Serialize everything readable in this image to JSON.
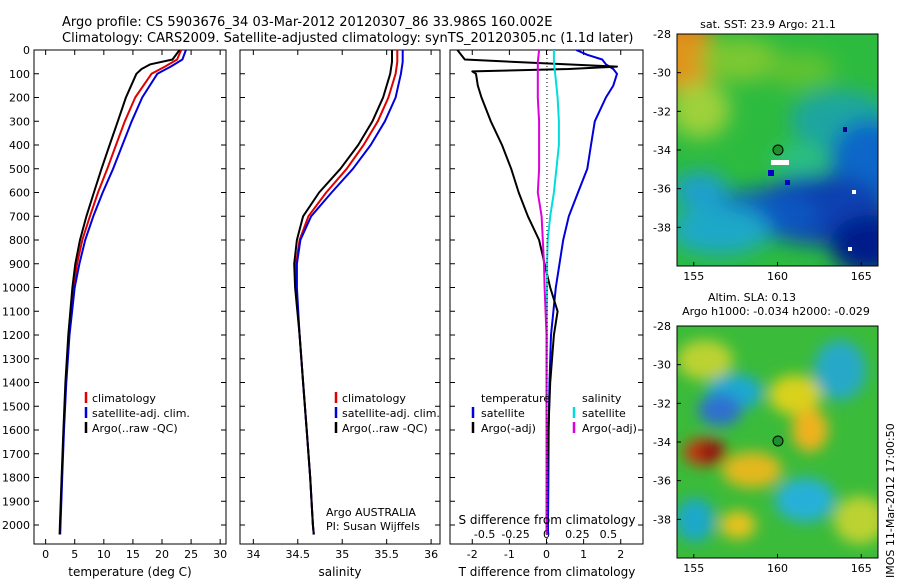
{
  "header": {
    "title_line1": "Argo profile: CS 5903676_34 03-Mar-2012 20120307_86 33.986S 160.002E",
    "title_line2": "Climatology: CARS2009. Satellite-adjusted climatology: synTS_20120305.nc (1.1d later)"
  },
  "colors": {
    "climatology": "#e00000",
    "satellite": "#0000dd",
    "argo": "#000000",
    "salinity_satellite": "#00dddd",
    "argo_salinity_adj": "#dd00dd"
  },
  "chart_data": [
    {
      "type": "line",
      "name": "temperature profile",
      "xlabel": "temperature (deg C)",
      "ylabel": "",
      "xlim": [
        -2,
        31
      ],
      "ylim": [
        2080,
        0
      ],
      "xticks": [
        0,
        5,
        10,
        15,
        20,
        25,
        30
      ],
      "yticks": [
        0,
        100,
        200,
        300,
        400,
        500,
        600,
        700,
        800,
        900,
        1000,
        1100,
        1200,
        1300,
        1400,
        1500,
        1600,
        1700,
        1800,
        1900,
        2000
      ],
      "legend": [
        "climatology",
        "satellite-adj. clim.",
        "Argo(..raw -QC)"
      ],
      "legend_position": "lower-center",
      "series": [
        {
          "name": "climatology",
          "color": "#e00000",
          "depth": [
            0,
            40,
            70,
            100,
            200,
            300,
            400,
            500,
            600,
            700,
            800,
            900,
            1000,
            1200,
            1400,
            1600,
            1800,
            2000,
            2040
          ],
          "values": [
            23.3,
            22.6,
            20.5,
            18.2,
            15.4,
            13.6,
            12.1,
            10.6,
            9.0,
            7.6,
            6.3,
            5.4,
            4.8,
            4.0,
            3.5,
            3.1,
            2.8,
            2.5,
            2.45
          ]
        },
        {
          "name": "satellite-adj. clim.",
          "color": "#0000dd",
          "depth": [
            0,
            40,
            70,
            100,
            200,
            300,
            400,
            500,
            600,
            700,
            800,
            900,
            1000,
            1200,
            1400,
            1600,
            1800,
            2000,
            2040
          ],
          "values": [
            24.1,
            23.5,
            21.5,
            19.2,
            16.6,
            14.8,
            13.2,
            11.6,
            9.8,
            8.2,
            6.8,
            5.8,
            5.0,
            4.1,
            3.55,
            3.15,
            2.85,
            2.55,
            2.5
          ]
        },
        {
          "name": "Argo(..raw -QC)",
          "color": "#000000",
          "depth": [
            0,
            40,
            60,
            80,
            100,
            200,
            300,
            400,
            500,
            600,
            700,
            800,
            900,
            1000,
            1200,
            1400,
            1600,
            1800,
            2000,
            2040
          ],
          "values": [
            23.0,
            21.8,
            18.0,
            16.5,
            15.6,
            13.8,
            12.4,
            11.0,
            9.6,
            8.3,
            7.0,
            5.9,
            5.1,
            4.6,
            3.9,
            3.4,
            3.05,
            2.75,
            2.45,
            2.4
          ]
        }
      ]
    },
    {
      "type": "line",
      "name": "salinity profile",
      "xlabel": "salinity",
      "xlim": [
        33.85,
        36.1
      ],
      "ylim": [
        2080,
        0
      ],
      "xticks": [
        34,
        34.5,
        35,
        35.5,
        36
      ],
      "legend": [
        "climatology",
        "satellite-adj. clim.",
        "Argo(..raw -QC)"
      ],
      "legend_position": "lower-right",
      "annotation": [
        "Argo AUSTRALIA",
        "PI: Susan Wijffels"
      ],
      "series": [
        {
          "name": "climatology",
          "color": "#e00000",
          "depth": [
            0,
            50,
            100,
            200,
            300,
            400,
            500,
            600,
            700,
            800,
            900,
            1000,
            1200,
            1400,
            1600,
            1800,
            2000,
            2040
          ],
          "values": [
            35.62,
            35.62,
            35.6,
            35.52,
            35.4,
            35.24,
            35.05,
            34.82,
            34.62,
            34.52,
            34.48,
            34.48,
            34.52,
            34.56,
            34.6,
            34.64,
            34.67,
            34.68
          ]
        },
        {
          "name": "satellite-adj. clim.",
          "color": "#0000dd",
          "depth": [
            0,
            50,
            100,
            200,
            300,
            400,
            500,
            600,
            700,
            800,
            900,
            1000,
            1200,
            1400,
            1600,
            1800,
            2000,
            2040
          ],
          "values": [
            35.68,
            35.68,
            35.66,
            35.6,
            35.48,
            35.32,
            35.12,
            34.88,
            34.65,
            34.53,
            34.49,
            34.49,
            34.52,
            34.56,
            34.6,
            34.64,
            34.67,
            34.68
          ]
        },
        {
          "name": "Argo(..raw -QC)",
          "color": "#000000",
          "depth": [
            0,
            50,
            100,
            200,
            300,
            400,
            500,
            600,
            700,
            800,
            900,
            1000,
            1200,
            1400,
            1600,
            1800,
            2000,
            2040
          ],
          "values": [
            35.56,
            35.56,
            35.54,
            35.46,
            35.34,
            35.18,
            34.98,
            34.74,
            34.56,
            34.49,
            34.46,
            34.47,
            34.52,
            34.56,
            34.6,
            34.64,
            34.67,
            34.68
          ]
        }
      ]
    },
    {
      "type": "line",
      "name": "difference from climatology",
      "xlabel": "T difference from climatology",
      "xlabel_top": "S difference from climatology",
      "xlim": [
        -2.6,
        2.6
      ],
      "ylim": [
        2080,
        0
      ],
      "xticks": [
        -2,
        -1,
        0,
        1,
        2
      ],
      "xticks_s": [
        -0.5,
        -0.25,
        0,
        0.25,
        0.5
      ],
      "xticks_s_labels": [
        "-0.5",
        "-0.25",
        "0",
        "0.25",
        "0.5"
      ],
      "legend_titles": [
        "temperature",
        "salinity"
      ],
      "legend": [
        "satellite",
        "Argo(-adj)",
        "satellite",
        "Argo(-adj)"
      ],
      "legend_position": "lower-center",
      "series": [
        {
          "name": "satellite",
          "variable": "temperature",
          "color": "#0000dd",
          "depth": [
            0,
            20,
            40,
            60,
            80,
            100,
            150,
            200,
            300,
            400,
            500,
            600,
            700,
            800,
            900,
            1000,
            1200,
            1400,
            1600,
            1800,
            2000,
            2040
          ],
          "values": [
            0.8,
            1.1,
            1.5,
            1.6,
            1.8,
            1.9,
            1.8,
            1.6,
            1.3,
            1.2,
            1.1,
            0.85,
            0.6,
            0.45,
            0.35,
            0.25,
            0.12,
            0.08,
            0.06,
            0.05,
            0.04,
            0.04
          ]
        },
        {
          "name": "Argo(-adj)",
          "variable": "temperature",
          "color": "#000000",
          "depth": [
            0,
            40,
            60,
            70,
            80,
            90,
            100,
            150,
            200,
            300,
            400,
            500,
            600,
            700,
            800,
            900,
            1000,
            1100,
            1200,
            1400,
            1600,
            1800,
            2000,
            2040
          ],
          "values": [
            -2.4,
            -2.2,
            0.5,
            1.9,
            0.6,
            -2.0,
            -1.9,
            -1.85,
            -1.75,
            -1.5,
            -1.2,
            -0.95,
            -0.75,
            -0.5,
            -0.2,
            -0.05,
            0.1,
            0.3,
            0.2,
            0.1,
            0.05,
            0.02,
            0.0,
            0.0
          ]
        },
        {
          "name": "satellite",
          "variable": "salinity",
          "color": "#00dddd",
          "depth": [
            0,
            50,
            100,
            200,
            300,
            400,
            500,
            600,
            700,
            800,
            900,
            1000,
            1200,
            1400,
            1600,
            1800,
            2000,
            2040
          ],
          "values": [
            0.06,
            0.06,
            0.07,
            0.09,
            0.1,
            0.1,
            0.08,
            0.06,
            0.03,
            0.01,
            0.005,
            0.004,
            0.003,
            0.002,
            0.002,
            0.002,
            0.001,
            0.001
          ]
        },
        {
          "name": "Argo(-adj)",
          "variable": "salinity",
          "color": "#dd00dd",
          "depth": [
            0,
            50,
            100,
            200,
            300,
            400,
            500,
            600,
            700,
            800,
            900,
            1000,
            1200,
            1400,
            1600,
            1800,
            2000,
            2040
          ],
          "values": [
            -0.06,
            -0.07,
            -0.07,
            -0.07,
            -0.06,
            -0.06,
            -0.06,
            -0.07,
            -0.04,
            -0.03,
            -0.02,
            -0.015,
            0.0,
            0.0,
            0.0,
            0.0,
            0.0,
            0.0
          ]
        }
      ]
    },
    {
      "type": "heatmap",
      "name": "sat. SST map",
      "title": "sat. SST: 23.9 Argo: 21.1",
      "xlim": [
        154,
        166
      ],
      "ylim": [
        -40,
        -28
      ],
      "xticks": [
        155,
        160,
        165
      ],
      "yticks": [
        -28,
        -30,
        -32,
        -34,
        -36,
        -38
      ],
      "yticklabels": [
        "-28",
        "-30",
        "-32",
        "-34",
        "-36",
        "-38"
      ],
      "argo_position": [
        160.0,
        -34.0
      ]
    },
    {
      "type": "heatmap",
      "name": "altimetry SLA map",
      "title_line1": "Altim. SLA: 0.13",
      "title_line2": "Argo h1000: -0.034 h2000: -0.029",
      "xlim": [
        154,
        166
      ],
      "ylim": [
        -40,
        -28
      ],
      "xticks": [
        155,
        160,
        165
      ],
      "yticks": [
        -28,
        -30,
        -32,
        -34,
        -36,
        -38
      ],
      "yticklabels": [
        "-28",
        "-30",
        "-32",
        "-34",
        "-36",
        "-38"
      ],
      "argo_position": [
        160.0,
        -34.0
      ]
    }
  ],
  "stamp": "IMOS 11-Mar-2012 17:00:50"
}
